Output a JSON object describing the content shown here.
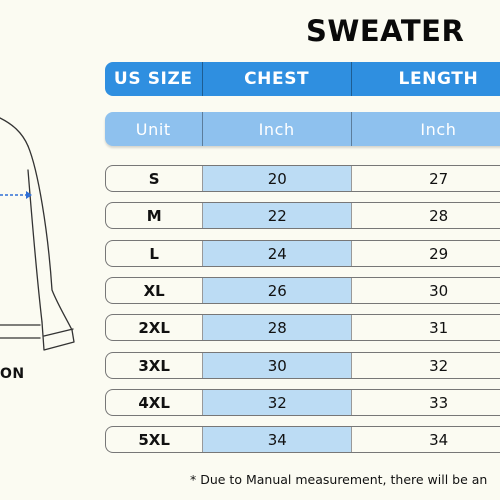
{
  "title": "SWEATER",
  "header": {
    "size_label": "US SIZE",
    "chest_label": "CHEST",
    "length_label": "LENGTH"
  },
  "units": {
    "label": "Unit",
    "chest_unit": "Inch",
    "length_unit": "Inch"
  },
  "rows": [
    {
      "size": "S",
      "chest": "20",
      "length": "27"
    },
    {
      "size": "M",
      "chest": "22",
      "length": "28"
    },
    {
      "size": "L",
      "chest": "24",
      "length": "29"
    },
    {
      "size": "XL",
      "chest": "26",
      "length": "30"
    },
    {
      "size": "2XL",
      "chest": "28",
      "length": "31"
    },
    {
      "size": "3XL",
      "chest": "30",
      "length": "32"
    },
    {
      "size": "4XL",
      "chest": "32",
      "length": "33"
    },
    {
      "size": "5XL",
      "chest": "34",
      "length": "34"
    }
  ],
  "left_partial_label": "ON",
  "footnote": "* Due to Manual measurement, there will be an",
  "colors": {
    "header_dark": "#2f8fe0",
    "header_light": "#8ec1ee",
    "chest_cell": "#bcdcf4",
    "background": "#fbfbf2"
  },
  "icons": [
    "sweater-outline-icon",
    "measure-arrow-icon"
  ]
}
